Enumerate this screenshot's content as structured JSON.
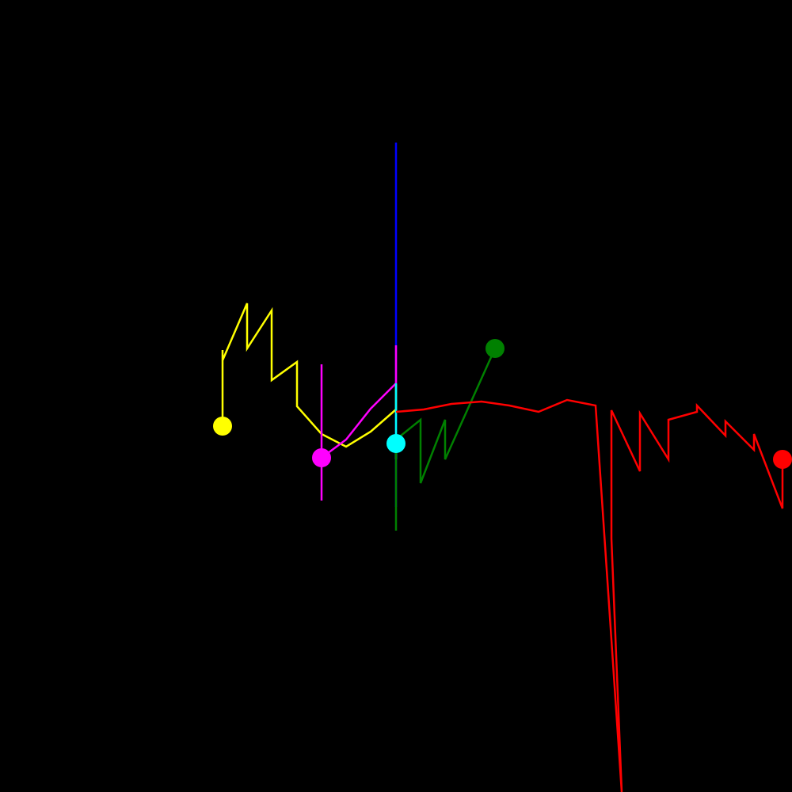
{
  "background_color": "#000000",
  "traces": [
    {
      "name": "blue-trace",
      "color": "#0000ff"
    },
    {
      "name": "yellow-trace",
      "color": "#ffff00"
    },
    {
      "name": "magenta-trace",
      "color": "#ff00ff"
    },
    {
      "name": "cyan-trace",
      "color": "#00ffff"
    },
    {
      "name": "green-trace",
      "color": "#008000"
    },
    {
      "name": "red-trace",
      "color": "#ff0000"
    }
  ],
  "markers": [
    {
      "name": "yellow-end-marker",
      "color": "#ffff00"
    },
    {
      "name": "magenta-end-marker",
      "color": "#ff00ff"
    },
    {
      "name": "cyan-end-marker",
      "color": "#00ffff"
    },
    {
      "name": "green-end-marker",
      "color": "#008000"
    },
    {
      "name": "red-end-marker",
      "color": "#ff0000"
    }
  ]
}
